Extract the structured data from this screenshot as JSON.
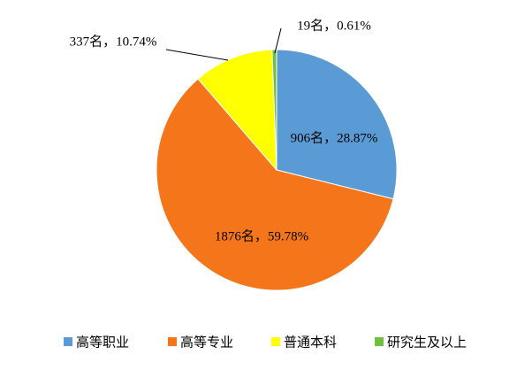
{
  "chart_data": {
    "type": "pie",
    "categories": [
      "高等职业",
      "高等专业",
      "普通本科",
      "研究生及以上"
    ],
    "values": [
      906,
      1876,
      337,
      19
    ],
    "value_labels": [
      "906名，28.87%",
      "1876名，59.78%",
      "337名，10.74%",
      "19名，0.61%"
    ],
    "colors": [
      "#5b9bd5",
      "#f5761a",
      "#ffff00",
      "#70c040"
    ],
    "legend": "bottom"
  }
}
